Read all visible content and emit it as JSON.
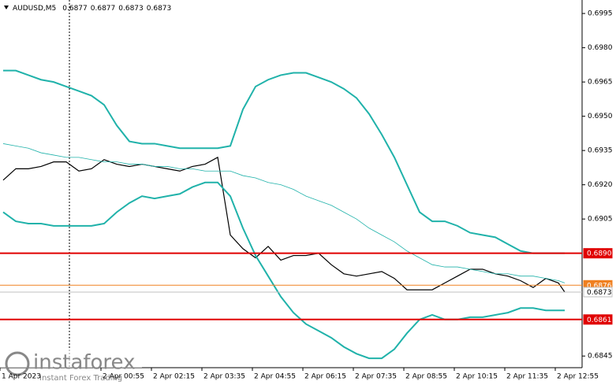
{
  "chart_data": {
    "type": "line",
    "symbol": "AUDUSD,M5",
    "ohlc": [
      0.6877,
      0.6877,
      0.6873,
      0.6873
    ],
    "x": [
      0,
      4,
      8,
      12,
      16,
      20,
      24,
      28,
      32,
      36,
      40,
      44,
      48,
      52,
      56,
      60,
      64,
      68,
      72,
      76,
      80,
      84,
      88,
      92,
      96,
      100,
      104,
      108,
      112,
      116,
      120,
      124,
      128,
      132,
      136,
      140,
      144,
      148,
      152,
      156,
      160,
      164,
      168,
      172,
      176,
      178
    ],
    "series": [
      {
        "name": "price",
        "color": "#000000",
        "width": 1.2,
        "values": [
          0.6922,
          0.6927,
          0.6927,
          0.6928,
          0.693,
          0.693,
          0.6926,
          0.6927,
          0.6931,
          0.6929,
          0.6928,
          0.6929,
          0.6928,
          0.6927,
          0.6926,
          0.6928,
          0.6929,
          0.6932,
          0.6898,
          0.6892,
          0.6888,
          0.6893,
          0.6887,
          0.6889,
          0.6889,
          0.689,
          0.6885,
          0.6881,
          0.688,
          0.6881,
          0.6882,
          0.6879,
          0.6874,
          0.6874,
          0.6874,
          0.6877,
          0.688,
          0.6883,
          0.6883,
          0.6881,
          0.688,
          0.6878,
          0.6875,
          0.6879,
          0.6877,
          0.6873
        ]
      },
      {
        "name": "upper-band",
        "color": "#20b2aa",
        "width": 2,
        "values": [
          0.697,
          0.697,
          0.6968,
          0.6966,
          0.6965,
          0.6963,
          0.6961,
          0.6959,
          0.6955,
          0.6946,
          0.6939,
          0.6938,
          0.6938,
          0.6937,
          0.6936,
          0.6936,
          0.6936,
          0.6936,
          0.6937,
          0.6953,
          0.6963,
          0.6966,
          0.6968,
          0.6969,
          0.6969,
          0.6967,
          0.6965,
          0.6962,
          0.6958,
          0.6951,
          0.6942,
          0.6932,
          0.692,
          0.6908,
          0.6904,
          0.6904,
          0.6902,
          0.6899,
          0.6898,
          0.6897,
          0.6894,
          0.6891,
          0.689,
          0.689,
          0.689,
          0.689
        ]
      },
      {
        "name": "lower-band",
        "color": "#20b2aa",
        "width": 2,
        "values": [
          0.6908,
          0.6904,
          0.6903,
          0.6903,
          0.6902,
          0.6902,
          0.6902,
          0.6902,
          0.6903,
          0.6908,
          0.6912,
          0.6915,
          0.6914,
          0.6915,
          0.6916,
          0.6919,
          0.6921,
          0.6921,
          0.6915,
          0.6901,
          0.6889,
          0.688,
          0.6871,
          0.6864,
          0.6859,
          0.6856,
          0.6853,
          0.6849,
          0.6846,
          0.6844,
          0.6844,
          0.6848,
          0.6855,
          0.6861,
          0.6863,
          0.6861,
          0.6861,
          0.6862,
          0.6862,
          0.6863,
          0.6864,
          0.6866,
          0.6866,
          0.6865,
          0.6865,
          0.6865
        ]
      },
      {
        "name": "moving-average",
        "color": "#20b2aa",
        "width": 0.8,
        "values": [
          0.6938,
          0.6937,
          0.6936,
          0.6934,
          0.6933,
          0.6932,
          0.6932,
          0.6931,
          0.693,
          0.693,
          0.6929,
          0.6929,
          0.6928,
          0.6928,
          0.6927,
          0.6927,
          0.6926,
          0.6926,
          0.6926,
          0.6924,
          0.6923,
          0.6921,
          0.692,
          0.6918,
          0.6915,
          0.6913,
          0.6911,
          0.6908,
          0.6905,
          0.6901,
          0.6898,
          0.6895,
          0.6891,
          0.6888,
          0.6885,
          0.6884,
          0.6884,
          0.6883,
          0.6882,
          0.6881,
          0.6881,
          0.688,
          0.688,
          0.6879,
          0.6878,
          0.6877
        ]
      }
    ],
    "levels": [
      {
        "value": 0.689,
        "label": "0.6890",
        "color": "#e00000",
        "text_color": "#ffffff",
        "width": 2
      },
      {
        "value": 0.6876,
        "label": "0.6876",
        "color": "#f08020",
        "text_color": "#ffffff",
        "width": 1
      },
      {
        "value": 0.6873,
        "label": "0.6873",
        "color": "#c0c0c0",
        "text_color": "#000000",
        "width": 1
      },
      {
        "value": 0.6861,
        "label": "0.6861",
        "color": "#e00000",
        "text_color": "#ffffff",
        "width": 2
      }
    ],
    "xlim": [
      -1,
      183.5
    ],
    "ylim": [
      0.68399,
      0.70009
    ],
    "yticks": [
      0.6995,
      {
        "value": 0.698,
        "label": "0.6980"
      },
      0.6965,
      {
        "value": 0.695,
        "label": "0.6950"
      },
      0.6935,
      {
        "value": 0.692,
        "label": "0.6920"
      },
      0.6905,
      0.6845
    ],
    "xticks": [
      {
        "value": -1,
        "label": "1 Apr 2023"
      },
      {
        "value": 31,
        "label": "2 Apr 00:55"
      },
      {
        "value": 47,
        "label": "2 Apr 02:15"
      },
      {
        "value": 63,
        "label": "2 Apr 03:35"
      },
      {
        "value": 79,
        "label": "2 Apr 04:55"
      },
      {
        "value": 95,
        "label": "2 Apr 06:15"
      },
      {
        "value": 111,
        "label": "2 Apr 07:35"
      },
      {
        "value": 127,
        "label": "2 Apr 08:55"
      },
      {
        "value": 143,
        "label": "2 Apr 10:15"
      },
      {
        "value": 159,
        "label": "2 Apr 11:35"
      },
      {
        "value": 175,
        "label": "2 Apr 12:55"
      }
    ],
    "logo": {
      "brand": "instaforex",
      "tagline": "Instant Forex Trading"
    }
  }
}
